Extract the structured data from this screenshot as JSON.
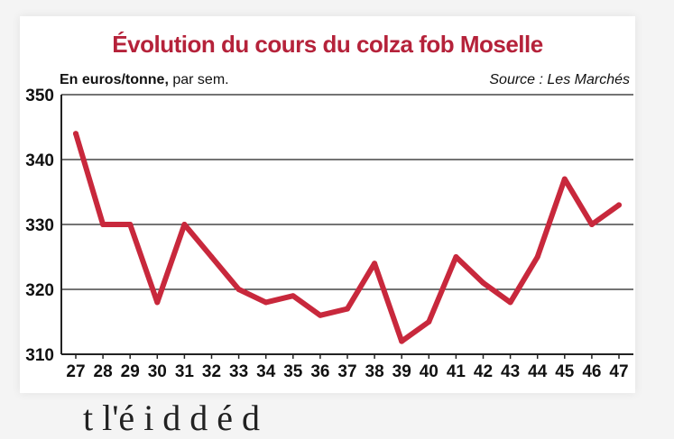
{
  "chart_data": {
    "type": "line",
    "title": "Évolution du cours du colza fob Moselle",
    "unit_bold": "En euros/tonne,",
    "unit_rest": " par sem.",
    "source": "Source : Les Marchés",
    "x": [
      "27",
      "28",
      "29",
      "30",
      "31",
      "32",
      "33",
      "34",
      "35",
      "36",
      "37",
      "38",
      "39",
      "40",
      "41",
      "42",
      "43",
      "44",
      "45",
      "46",
      "47"
    ],
    "values": [
      344,
      330,
      330,
      318,
      330,
      325,
      320,
      318,
      319,
      316,
      317,
      324,
      312,
      315,
      325,
      321,
      318,
      325,
      337,
      330,
      333
    ],
    "yticks": [
      "310",
      "320",
      "330",
      "340",
      "350"
    ],
    "ylim": [
      310,
      350
    ],
    "grid": true,
    "legend": "none",
    "line_color": "#c8283c",
    "title_color": "#b5223a"
  },
  "below_text": "  t  l'é  i  d  d   é  d"
}
